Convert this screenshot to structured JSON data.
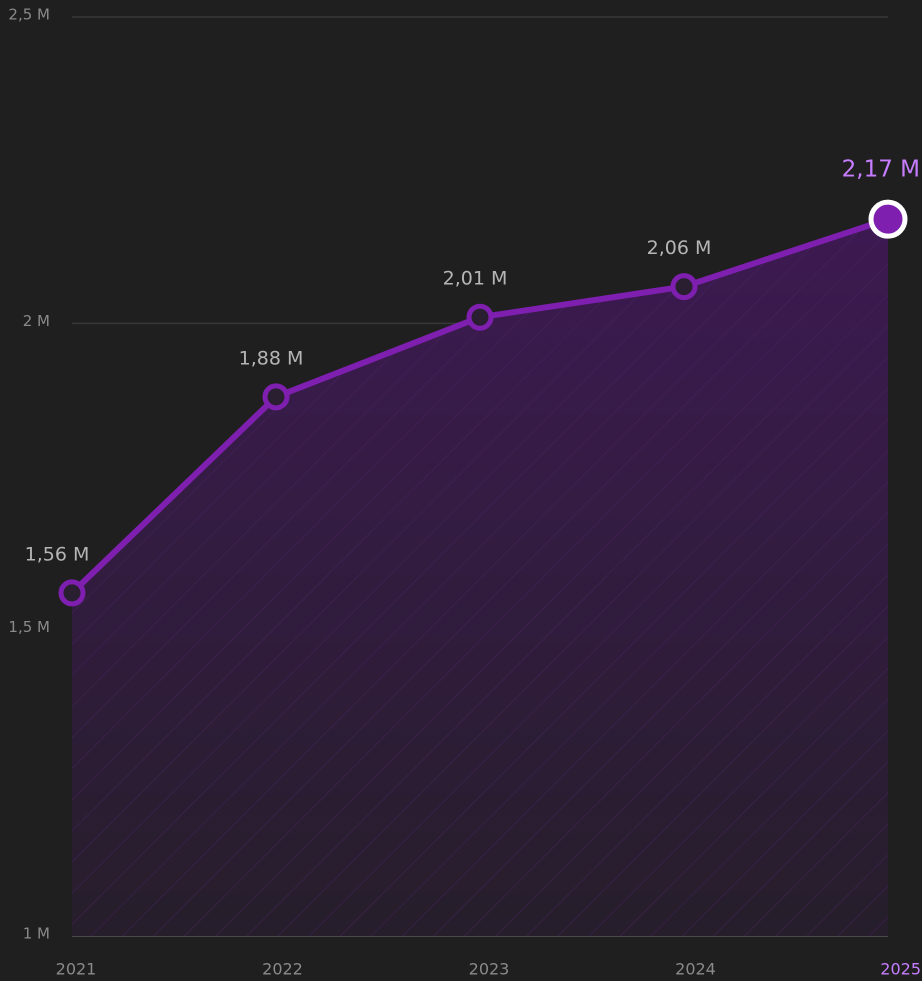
{
  "chart_data": {
    "type": "area",
    "categories": [
      "2021",
      "2022",
      "2023",
      "2024",
      "2025"
    ],
    "series": [
      {
        "name": null,
        "color": "#7e1fb0",
        "values": [
          1.56,
          1.88,
          2.01,
          2.06,
          2.17
        ],
        "value_labels": [
          "1,56 M",
          "1,88 M",
          "2,01 M",
          "2,06 M",
          "2,17 M"
        ]
      }
    ],
    "highlight_color": "#c77dff",
    "ylim": [
      1,
      2.5
    ],
    "yticks": [
      {
        "value": 1,
        "label": "1 M"
      },
      {
        "value": 1.5,
        "label": "1,5 M"
      },
      {
        "value": 2,
        "label": "2 M"
      },
      {
        "value": 2.5,
        "label": "2,5 M"
      }
    ],
    "grid": true
  }
}
